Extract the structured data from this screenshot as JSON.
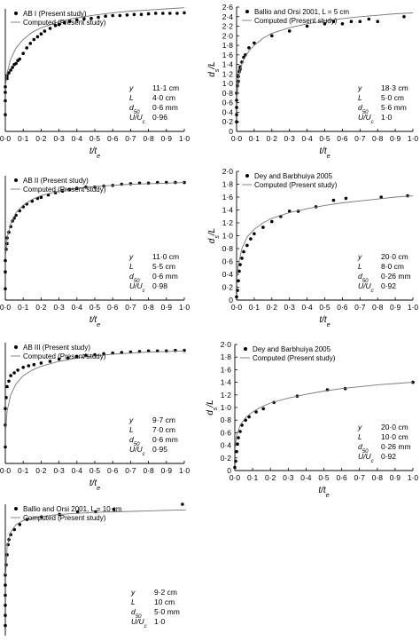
{
  "chart_data": [
    {
      "type": "scatter",
      "xlabel": "t/te",
      "ylabel": "",
      "xlim": [
        0,
        1
      ],
      "ylim": [
        0,
        2.2
      ],
      "x_ticks": [
        "0·0",
        "0·1",
        "0·2",
        "0·3",
        "0·4",
        "0·5",
        "0·6",
        "0·7",
        "0·8",
        "0·9",
        "1·0"
      ],
      "y_ticks": [],
      "legend": {
        "position": "top-left",
        "entries": [
          "AB I (Present study)",
          "Computed (Present study)"
        ]
      },
      "params": [
        {
          "label": "y",
          "value": "11·1 cm"
        },
        {
          "label": "L",
          "value": "4·0 cm"
        },
        {
          "label": "d50",
          "value": "0·6 mm"
        },
        {
          "label": "U/Uc",
          "value": "0·96"
        }
      ],
      "series": [
        {
          "name": "AB I (Present study)",
          "kind": "points",
          "x": [
            0,
            0,
            0,
            0,
            0.01,
            0.01,
            0.02,
            0.03,
            0.04,
            0.05,
            0.06,
            0.07,
            0.08,
            0.1,
            0.12,
            0.14,
            0.16,
            0.18,
            0.2,
            0.22,
            0.25,
            0.28,
            0.3,
            0.33,
            0.36,
            0.4,
            0.44,
            0.48,
            0.52,
            0.56,
            0.6,
            0.64,
            0.68,
            0.72,
            0.76,
            0.8,
            0.84,
            0.88,
            0.92,
            0.96,
            1.0
          ],
          "y": [
            0.3,
            0.55,
            0.7,
            0.8,
            0.95,
            1.0,
            1.05,
            1.1,
            1.15,
            1.2,
            1.22,
            1.27,
            1.3,
            1.4,
            1.5,
            1.58,
            1.65,
            1.7,
            1.75,
            1.8,
            1.85,
            1.9,
            1.92,
            1.95,
            1.98,
            2.0,
            2.02,
            2.03,
            2.05,
            2.07,
            2.08,
            2.08,
            2.09,
            2.1,
            2.1,
            2.11,
            2.12,
            2.12,
            2.12,
            2.12,
            2.13
          ]
        },
        {
          "name": "Computed (Present study)",
          "kind": "line",
          "x": [
            0.002,
            0.01,
            0.03,
            0.06,
            0.1,
            0.15,
            0.2,
            0.3,
            0.4,
            0.5,
            0.6,
            0.7,
            0.8,
            0.9,
            1.0
          ],
          "y": [
            0.85,
            1.05,
            1.3,
            1.5,
            1.65,
            1.78,
            1.86,
            1.97,
            2.04,
            2.09,
            2.13,
            2.16,
            2.18,
            2.2,
            2.22
          ]
        }
      ]
    },
    {
      "type": "scatter",
      "xlabel": "t/te",
      "ylabel": "ds/L",
      "xlim": [
        0,
        1
      ],
      "ylim": [
        0,
        2.6
      ],
      "x_ticks": [
        "0·0",
        "0·1",
        "0·2",
        "0·3",
        "0·4",
        "0·5",
        "0·6",
        "0·7",
        "0·8",
        "0·9",
        "1·0"
      ],
      "y_ticks": [
        "0",
        "0·2",
        "0·4",
        "0·6",
        "0·8",
        "1·0",
        "1·2",
        "1·4",
        "1·6",
        "1·8",
        "2·0",
        "2·2",
        "2·4",
        "2·6"
      ],
      "legend": {
        "position": "top-left",
        "entries": [
          "Ballio and Orsi 2001, L = 5 cm",
          "Computed (Present study)"
        ]
      },
      "params": [
        {
          "label": "y",
          "value": "18·3 cm"
        },
        {
          "label": "L",
          "value": "5·0 cm"
        },
        {
          "label": "d50",
          "value": "5·6 mm"
        },
        {
          "label": "U/Uc",
          "value": "1·0"
        }
      ],
      "series": [
        {
          "name": "Ballio and Orsi 2001, L = 5 cm",
          "kind": "points",
          "x": [
            0,
            0,
            0,
            0,
            0,
            0.005,
            0.01,
            0.01,
            0.015,
            0.02,
            0.02,
            0.03,
            0.04,
            0.05,
            0.07,
            0.1,
            0.2,
            0.3,
            0.4,
            0.5,
            0.55,
            0.6,
            0.65,
            0.7,
            0.75,
            0.8,
            0.95
          ],
          "y": [
            0.2,
            0.35,
            0.5,
            0.65,
            0.8,
            0.95,
            1.05,
            1.15,
            1.25,
            1.3,
            1.35,
            1.45,
            1.55,
            1.6,
            1.75,
            1.85,
            2.0,
            2.1,
            2.2,
            2.25,
            2.3,
            2.25,
            2.3,
            2.3,
            2.35,
            2.3,
            2.4
          ]
        },
        {
          "name": "Computed (Present study)",
          "kind": "line",
          "x": [
            0.002,
            0.01,
            0.02,
            0.04,
            0.07,
            0.1,
            0.15,
            0.2,
            0.3,
            0.4,
            0.5,
            0.6,
            0.7,
            0.8,
            0.9,
            1.0
          ],
          "y": [
            0.7,
            1.1,
            1.3,
            1.5,
            1.68,
            1.8,
            1.95,
            2.05,
            2.17,
            2.25,
            2.31,
            2.36,
            2.4,
            2.43,
            2.46,
            2.48
          ]
        }
      ]
    },
    {
      "type": "scatter",
      "xlabel": "t/te",
      "ylabel": "",
      "xlim": [
        0,
        1
      ],
      "ylim": [
        0,
        2.2
      ],
      "x_ticks": [
        "0·0",
        "0·1",
        "0·2",
        "0·3",
        "0·4",
        "0·5",
        "0·6",
        "0·7",
        "0·8",
        "0·9",
        "1·0"
      ],
      "y_ticks": [],
      "legend": {
        "position": "top-left",
        "entries": [
          "AB II (Present study)",
          "Computed (Present study)"
        ]
      },
      "params": [
        {
          "label": "y",
          "value": "11·0 cm"
        },
        {
          "label": "L",
          "value": "5·5 cm"
        },
        {
          "label": "d50",
          "value": "0·6 mm"
        },
        {
          "label": "U/Uc",
          "value": "0·98"
        }
      ],
      "series": [
        {
          "name": "AB II (Present study)",
          "kind": "points",
          "x": [
            0,
            0,
            0,
            0.005,
            0.01,
            0.01,
            0.02,
            0.03,
            0.04,
            0.05,
            0.06,
            0.08,
            0.1,
            0.12,
            0.15,
            0.18,
            0.2,
            0.24,
            0.28,
            0.32,
            0.36,
            0.4,
            0.45,
            0.5,
            0.55,
            0.6,
            0.65,
            0.7,
            0.75,
            0.8,
            0.85,
            0.9,
            0.95,
            1.0
          ],
          "y": [
            0.2,
            0.5,
            0.7,
            0.9,
            1.0,
            1.1,
            1.2,
            1.3,
            1.4,
            1.45,
            1.5,
            1.58,
            1.65,
            1.7,
            1.75,
            1.8,
            1.82,
            1.86,
            1.9,
            1.93,
            1.96,
            1.98,
            2.0,
            2.0,
            2.02,
            2.03,
            2.05,
            2.06,
            2.07,
            2.07,
            2.08,
            2.08,
            2.08,
            2.08
          ]
        },
        {
          "name": "Computed (Present study)",
          "kind": "line",
          "x": [
            0.002,
            0.01,
            0.03,
            0.06,
            0.1,
            0.15,
            0.2,
            0.3,
            0.4,
            0.5,
            0.6,
            0.7,
            0.8,
            0.9,
            1.0
          ],
          "y": [
            0.8,
            1.1,
            1.35,
            1.55,
            1.68,
            1.78,
            1.85,
            1.93,
            1.98,
            2.01,
            2.03,
            2.05,
            2.06,
            2.07,
            2.08
          ]
        }
      ]
    },
    {
      "type": "scatter",
      "xlabel": "t/te",
      "ylabel": "ds/L",
      "xlim": [
        0,
        1
      ],
      "ylim": [
        0,
        2.0
      ],
      "x_ticks": [
        "0·0",
        "0·1",
        "0·2",
        "0·3",
        "0·4",
        "0·5",
        "0·6",
        "0·7",
        "0·8",
        "0·9",
        "1·0"
      ],
      "y_ticks": [
        "0",
        "0·2",
        "0·4",
        "0·6",
        "0·8",
        "1·0",
        "1·2",
        "1·4",
        "1·6",
        "1·8",
        "2·0"
      ],
      "legend": {
        "position": "top-left",
        "entries": [
          "Dey and Barbhuiya 2005",
          "Computed (Present study)"
        ]
      },
      "params": [
        {
          "label": "y",
          "value": "20·0 cm"
        },
        {
          "label": "L",
          "value": "8·0 cm"
        },
        {
          "label": "d50",
          "value": "0·26 mm"
        },
        {
          "label": "U/Uc",
          "value": "0·92"
        }
      ],
      "series": [
        {
          "name": "Dey and Barbhuiya 2005",
          "kind": "points",
          "x": [
            0,
            0.005,
            0.01,
            0.015,
            0.02,
            0.03,
            0.04,
            0.06,
            0.08,
            0.1,
            0.15,
            0.2,
            0.25,
            0.3,
            0.35,
            0.45,
            0.55,
            0.62,
            0.82,
            0.97
          ],
          "y": [
            0.05,
            0.15,
            0.3,
            0.45,
            0.55,
            0.65,
            0.75,
            0.85,
            0.95,
            1.03,
            1.13,
            1.22,
            1.3,
            1.38,
            1.38,
            1.45,
            1.55,
            1.58,
            1.6,
            1.62
          ]
        },
        {
          "name": "Computed (Present study)",
          "kind": "line",
          "x": [
            0.002,
            0.01,
            0.03,
            0.06,
            0.1,
            0.15,
            0.2,
            0.3,
            0.4,
            0.5,
            0.6,
            0.7,
            0.8,
            0.9,
            1.0
          ],
          "y": [
            0.35,
            0.55,
            0.8,
            0.98,
            1.1,
            1.2,
            1.27,
            1.36,
            1.42,
            1.47,
            1.51,
            1.54,
            1.57,
            1.6,
            1.62
          ]
        }
      ]
    },
    {
      "type": "scatter",
      "xlabel": "t/te",
      "ylabel": "",
      "xlim": [
        0,
        1
      ],
      "ylim": [
        0,
        2.2
      ],
      "x_ticks": [
        "0·0",
        "0·1",
        "0·2",
        "0·3",
        "0·4",
        "0·5",
        "0·6",
        "0·7",
        "0·8",
        "0·9",
        "1·0"
      ],
      "y_ticks": [],
      "legend": {
        "position": "top-left",
        "entries": [
          "AB III (Present study)",
          "Computed (Present study)"
        ]
      },
      "params": [
        {
          "label": "y",
          "value": "9·7 cm"
        },
        {
          "label": "L",
          "value": "7·0 cm"
        },
        {
          "label": "d50",
          "value": "0·6 mm"
        },
        {
          "label": "U/Uc",
          "value": "0·95"
        }
      ],
      "series": [
        {
          "name": "AB III (Present study)",
          "kind": "points",
          "x": [
            0,
            0,
            0,
            0.005,
            0.01,
            0.02,
            0.03,
            0.05,
            0.07,
            0.1,
            0.13,
            0.16,
            0.2,
            0.25,
            0.3,
            0.35,
            0.4,
            0.45,
            0.5,
            0.55,
            0.6,
            0.65,
            0.7,
            0.75,
            0.8,
            0.85,
            0.9,
            0.95,
            1.0
          ],
          "y": [
            0.3,
            0.7,
            1.0,
            1.2,
            1.4,
            1.5,
            1.6,
            1.65,
            1.7,
            1.75,
            1.78,
            1.8,
            1.83,
            1.86,
            1.9,
            1.92,
            1.95,
            1.97,
            1.98,
            2.0,
            2.01,
            2.02,
            2.03,
            2.04,
            2.05,
            2.05,
            2.05,
            2.06,
            2.06
          ]
        },
        {
          "name": "Computed (Present study)",
          "kind": "line",
          "x": [
            0.002,
            0.01,
            0.03,
            0.06,
            0.1,
            0.15,
            0.2,
            0.3,
            0.4,
            0.5,
            0.6,
            0.7,
            0.8,
            0.9,
            1.0
          ],
          "y": [
            0.6,
            0.95,
            1.25,
            1.45,
            1.6,
            1.7,
            1.77,
            1.86,
            1.92,
            1.96,
            1.99,
            2.01,
            2.03,
            2.04,
            2.05
          ]
        }
      ]
    },
    {
      "type": "scatter",
      "xlabel": "t/te",
      "ylabel": "ds/L",
      "xlim": [
        0,
        1
      ],
      "ylim": [
        0,
        2.0
      ],
      "x_ticks": [
        "0·0",
        "0·1",
        "0·2",
        "0·3",
        "0·4",
        "0·5",
        "0·6",
        "0·7",
        "0·8",
        "0·9",
        "1·0"
      ],
      "y_ticks": [
        "0",
        "0·2",
        "0·4",
        "0·6",
        "0·8",
        "1·0",
        "1·2",
        "1·4",
        "1·6",
        "1·8",
        "2·0"
      ],
      "legend": {
        "position": "top-left",
        "entries": [
          "Dey and Barbhuiya 2005",
          "Computed (Present study)"
        ]
      },
      "params": [
        {
          "label": "y",
          "value": "20·0 cm"
        },
        {
          "label": "L",
          "value": "10·0 cm"
        },
        {
          "label": "d50",
          "value": "0·26 mm"
        },
        {
          "label": "U/Uc",
          "value": "0·92"
        }
      ],
      "series": [
        {
          "name": "Dey and Barbhuiya 2005",
          "kind": "points",
          "x": [
            0,
            0.005,
            0.01,
            0.015,
            0.02,
            0.03,
            0.04,
            0.06,
            0.08,
            0.12,
            0.16,
            0.22,
            0.35,
            0.52,
            0.62,
            1.0
          ],
          "y": [
            0.05,
            0.15,
            0.3,
            0.42,
            0.52,
            0.62,
            0.72,
            0.8,
            0.85,
            0.93,
            0.98,
            1.08,
            1.18,
            1.28,
            1.3,
            1.4
          ]
        },
        {
          "name": "Computed (Present study)",
          "kind": "line",
          "x": [
            0.002,
            0.01,
            0.03,
            0.06,
            0.1,
            0.15,
            0.2,
            0.3,
            0.4,
            0.5,
            0.6,
            0.7,
            0.8,
            0.9,
            1.0
          ],
          "y": [
            0.35,
            0.55,
            0.72,
            0.84,
            0.93,
            1.01,
            1.07,
            1.15,
            1.21,
            1.26,
            1.3,
            1.33,
            1.36,
            1.38,
            1.4
          ]
        }
      ]
    },
    {
      "type": "scatter",
      "xlabel": "",
      "ylabel": "",
      "xlim": [
        0,
        1
      ],
      "ylim": [
        0,
        2.6
      ],
      "x_ticks": [],
      "y_ticks": [],
      "legend": {
        "position": "top-left",
        "entries": [
          "Ballio and Orsi 2001, L = 10 cm",
          "Computed (Present study)"
        ]
      },
      "params": [
        {
          "label": "y",
          "value": "9·2 cm"
        },
        {
          "label": "L",
          "value": "10 cm"
        },
        {
          "label": "d50",
          "value": "5·0 mm"
        },
        {
          "label": "U/Uc",
          "value": "1·0"
        }
      ],
      "series": [
        {
          "name": "Ballio and Orsi 2001, L = 10 cm",
          "kind": "points",
          "x": [
            0,
            0,
            0,
            0,
            0,
            0,
            0.005,
            0.01,
            0.015,
            0.02,
            0.03,
            0.05,
            0.08,
            0.12,
            0.2,
            0.3,
            0.4,
            0.5,
            0.6,
            0.98
          ],
          "y": [
            0.2,
            0.4,
            0.6,
            0.8,
            1.0,
            1.2,
            1.4,
            1.6,
            1.8,
            1.9,
            2.0,
            2.1,
            2.2,
            2.3,
            2.35,
            2.4,
            2.45,
            2.45,
            2.5,
            2.6
          ]
        },
        {
          "name": "Computed (Present study)",
          "kind": "line",
          "x": [
            0.002,
            0.01,
            0.03,
            0.06,
            0.1,
            0.2,
            0.3,
            0.4,
            0.5,
            0.6,
            0.7,
            0.8,
            0.9,
            1.0
          ],
          "y": [
            1.2,
            1.75,
            2.05,
            2.2,
            2.28,
            2.36,
            2.4,
            2.42,
            2.44,
            2.45,
            2.46,
            2.47,
            2.48,
            2.49
          ]
        }
      ]
    }
  ]
}
